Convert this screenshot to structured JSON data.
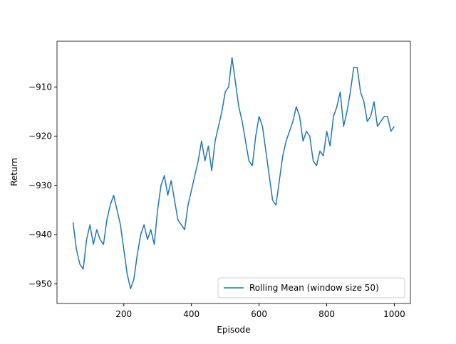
{
  "chart_data": {
    "type": "line",
    "x_label": "Episode",
    "y_label": "Return",
    "x": [
      50,
      60,
      70,
      80,
      90,
      100,
      110,
      120,
      130,
      140,
      150,
      160,
      170,
      180,
      190,
      200,
      210,
      220,
      230,
      240,
      250,
      260,
      270,
      280,
      290,
      300,
      310,
      320,
      330,
      340,
      350,
      360,
      370,
      380,
      390,
      400,
      410,
      420,
      430,
      440,
      450,
      460,
      470,
      480,
      490,
      500,
      510,
      520,
      530,
      540,
      550,
      560,
      570,
      580,
      590,
      600,
      610,
      620,
      630,
      640,
      650,
      660,
      670,
      680,
      690,
      700,
      710,
      720,
      730,
      740,
      750,
      760,
      770,
      780,
      790,
      800,
      810,
      820,
      830,
      840,
      850,
      860,
      870,
      880,
      890,
      900,
      910,
      920,
      930,
      940,
      950,
      960,
      970,
      980,
      990,
      1000
    ],
    "series": [
      {
        "name": "Rolling Mean (window size 50)",
        "color": "#1f77b4",
        "values": [
          -937.5,
          -943,
          -946,
          -947,
          -941,
          -938,
          -942,
          -939,
          -941,
          -942,
          -937,
          -934,
          -932,
          -935,
          -938,
          -943,
          -948,
          -951,
          -949,
          -944,
          -940,
          -938,
          -941,
          -939,
          -942,
          -935,
          -930,
          -928,
          -932,
          -929,
          -933,
          -937,
          -938,
          -939,
          -934,
          -931,
          -928,
          -925,
          -921,
          -925,
          -922,
          -927,
          -921,
          -918,
          -915,
          -911,
          -910,
          -904,
          -909,
          -914,
          -917,
          -921,
          -925,
          -926,
          -920,
          -916,
          -918,
          -923,
          -928,
          -933,
          -934,
          -929,
          -924,
          -921,
          -919,
          -917,
          -914,
          -916,
          -921,
          -919,
          -920,
          -925,
          -926,
          -923,
          -924,
          -919,
          -922,
          -916,
          -914,
          -911,
          -918,
          -915,
          -911,
          -906,
          -906,
          -911,
          -913,
          -917,
          -916,
          -913,
          -918,
          -917,
          -916,
          -916,
          -919,
          -918
        ]
      }
    ],
    "xlim": [
      2.5,
      1047.5
    ],
    "ylim": [
      -954.0,
      -900.7
    ],
    "xticks": [
      200,
      400,
      600,
      800,
      1000
    ],
    "yticks": [
      {
        "value": -910,
        "label": "−910"
      },
      {
        "value": -920,
        "label": "−920"
      },
      {
        "value": -930,
        "label": "−930"
      },
      {
        "value": -940,
        "label": "−940"
      },
      {
        "value": -950,
        "label": "−950"
      }
    ],
    "legend": "lower right"
  }
}
